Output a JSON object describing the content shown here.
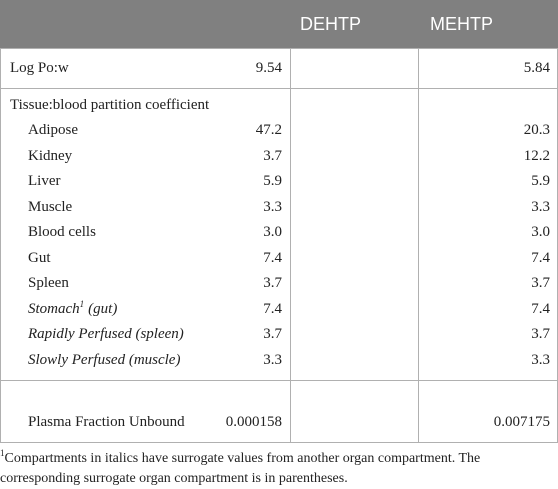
{
  "table": {
    "columns": [
      "DEHTP",
      "MEHTP"
    ],
    "log_row": {
      "label": "Log Po:w",
      "values": [
        "9.54",
        "5.84"
      ]
    },
    "tissue": {
      "title": "Tissue:blood partition coefficient",
      "rows": [
        {
          "label": "Adipose",
          "values": [
            "47.2",
            "20.3"
          ]
        },
        {
          "label": "Kidney",
          "values": [
            "3.7",
            "12.2"
          ]
        },
        {
          "label": "Liver",
          "values": [
            "5.9",
            "5.9"
          ]
        },
        {
          "label": "Muscle",
          "values": [
            "3.3",
            "3.3"
          ]
        },
        {
          "label": "Blood cells",
          "values": [
            "3.0",
            "3.0"
          ]
        },
        {
          "label": "Gut",
          "values": [
            "7.4",
            "7.4"
          ]
        },
        {
          "label": "Spleen",
          "values": [
            "3.7",
            "3.7"
          ]
        },
        {
          "label": "Stomach",
          "footnote_mark": "1",
          "label_suffix": "(gut)",
          "italic": true,
          "values": [
            "7.4",
            "7.4"
          ]
        },
        {
          "label": "Rapidly Perfused (spleen)",
          "italic": true,
          "values": [
            "3.7",
            "3.7"
          ]
        },
        {
          "label": "Slowly Perfused (muscle)",
          "italic": true,
          "values": [
            "3.3",
            "3.3"
          ]
        }
      ]
    },
    "plasma_row": {
      "label": "Plasma Fraction Unbound",
      "values": [
        "0.000158",
        "0.007175"
      ]
    },
    "footnote": {
      "mark": "1",
      "text": "Compartments in italics have surrogate values from another organ compartment. The corresponding surrogate organ compartment is in parentheses."
    }
  }
}
